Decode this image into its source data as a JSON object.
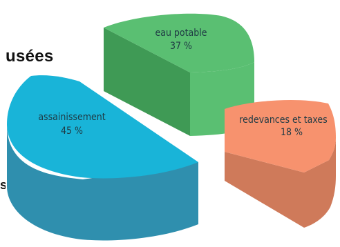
{
  "fragments": {
    "top_right_title": "usées",
    "left_edge": "s"
  },
  "chart_data": {
    "type": "pie",
    "style": "3d exploded",
    "slices": [
      {
        "label": "eau potable",
        "value": 37,
        "value_label": "37 %",
        "color": "#5abf72",
        "side_color": "#3f9a55"
      },
      {
        "label": "assainissement",
        "value": 45,
        "value_label": "45 %",
        "color": "#19b4d8",
        "side_color": "#2f8fae"
      },
      {
        "label": "redevances et taxes",
        "value": 18,
        "value_label": "18 %",
        "color": "#f7926e",
        "side_color": "#cf7a5a"
      }
    ],
    "legend": "none"
  }
}
